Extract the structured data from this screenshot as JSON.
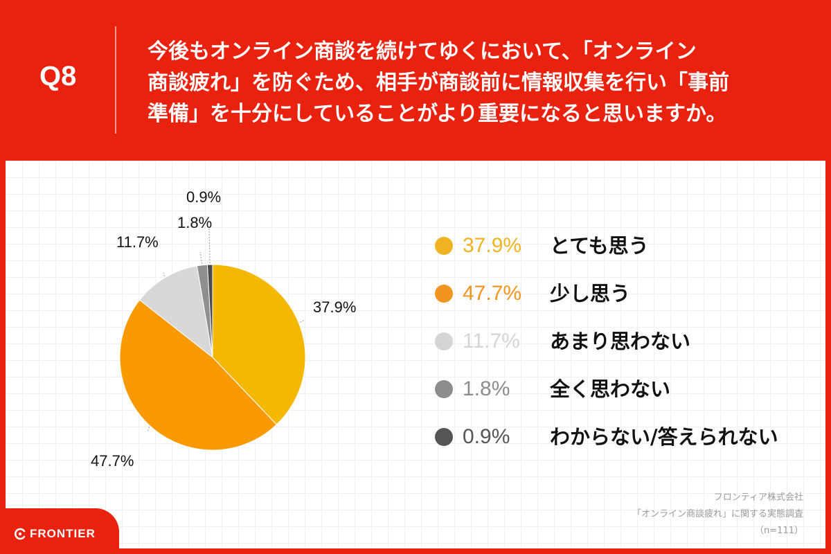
{
  "header": {
    "qnum": "Q8",
    "question_lines": [
      "今後もオンライン商談を続けてゆくにおいて、「オンライン",
      "商談疲れ」を防ぐため、相手が商談前に情報収集を行い「事前",
      "準備」を十分にしていることがより重要になると思いますか。"
    ]
  },
  "chart_data": {
    "type": "pie",
    "start": "top",
    "direction": "clockwise",
    "slices": [
      {
        "label": "とても思う",
        "value": 37.9,
        "display": "37.9%",
        "color": "#f5b800",
        "legend_color": "#f0b323"
      },
      {
        "label": "少し思う",
        "value": 47.7,
        "display": "47.7%",
        "color": "#f99a05",
        "legend_color": "#f29420"
      },
      {
        "label": "あまり思わない",
        "value": 11.7,
        "display": "11.7%",
        "color": "#d8d8d8",
        "legend_color": "#d5d5d5"
      },
      {
        "label": "全く思わない",
        "value": 1.8,
        "display": "1.8%",
        "color": "#8f8f8f",
        "legend_color": "#8d8d8d"
      },
      {
        "label": "わからない/答えられない",
        "value": 0.9,
        "display": "0.9%",
        "color": "#4a4a4a",
        "legend_color": "#555555"
      }
    ],
    "legend_placement": "right",
    "data_labels": "outside with leader lines"
  },
  "source": {
    "company": "フロンティア株式会社",
    "survey": "「オンライン商談疲れ」に関する実態調査",
    "n": "（n=111）"
  },
  "logo": {
    "text": "FRONTIER",
    "icon": "frontier-logo-icon"
  }
}
